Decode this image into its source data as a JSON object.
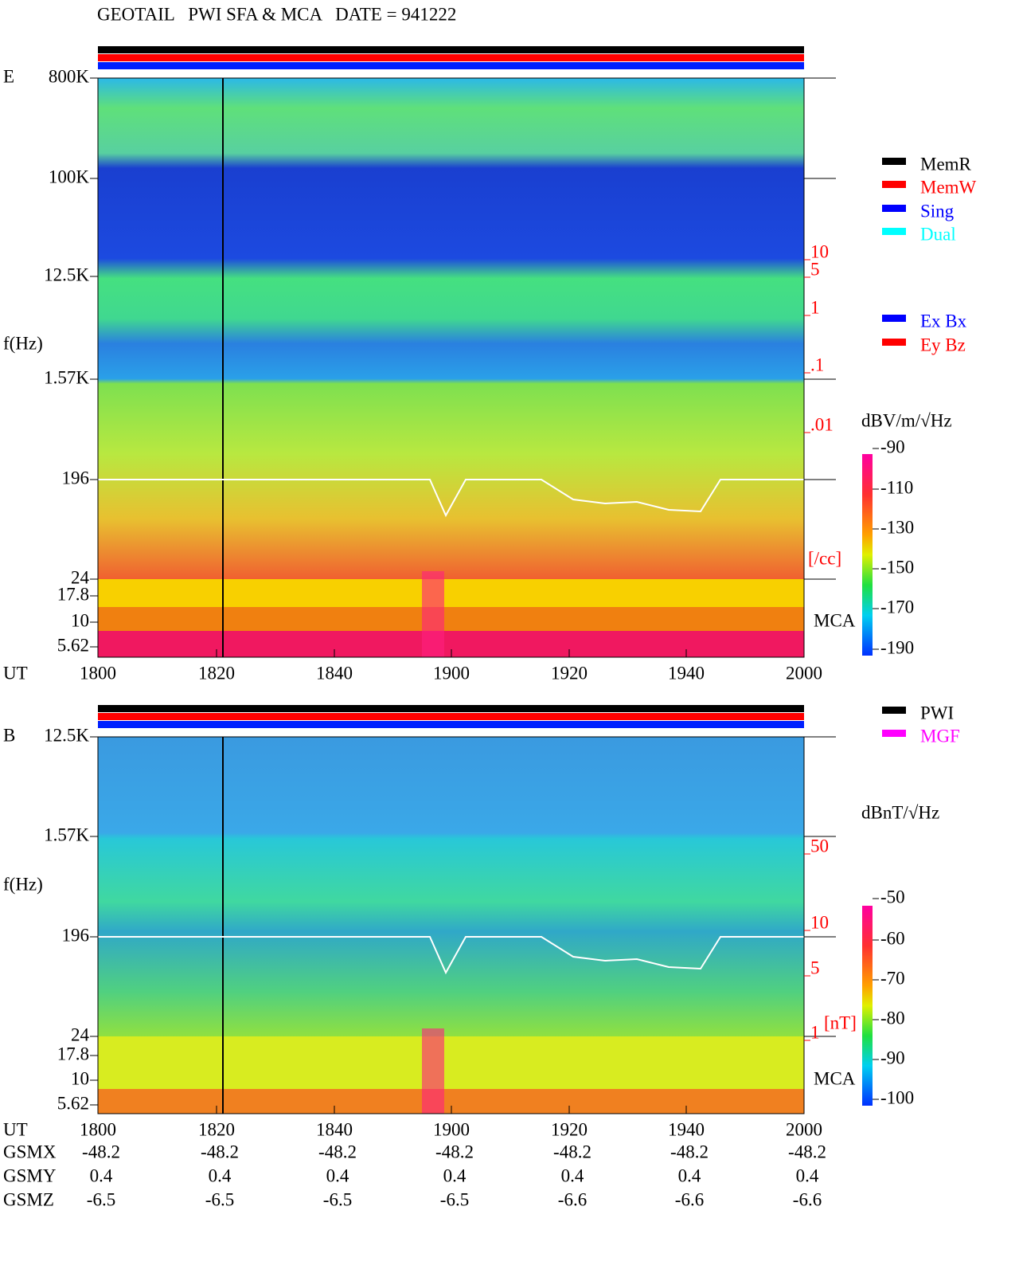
{
  "title": "GEOTAIL   PWI SFA & MCA   DATE = 941222",
  "panels": [
    {
      "label": "E",
      "freq_axis_label": "f(Hz)",
      "freq_ticks": [
        "800K",
        "100K",
        "12.5K",
        "1.57K",
        "196",
        "24",
        "17.8",
        "10",
        "5.62"
      ],
      "time_label": "UT",
      "time_ticks": [
        "1800",
        "1820",
        "1840",
        "1900",
        "1920",
        "1940",
        "2000"
      ],
      "right_ticks": [
        "10",
        "5",
        "1",
        ".1",
        ".01"
      ],
      "right_unit": "[/cc]",
      "mca_label": "MCA",
      "legend": [
        {
          "label": "MemR",
          "color": "#000000"
        },
        {
          "label": "MemW",
          "color": "#ff0000"
        },
        {
          "label": "Sing",
          "color": "#0000ff"
        },
        {
          "label": "Dual",
          "color": "#00ffff"
        }
      ],
      "legend2": [
        {
          "label": "Ex Bx",
          "color": "#0000ff"
        },
        {
          "label": "Ey Bz",
          "color": "#ff0000"
        }
      ],
      "unit": "dBV/m/√Hz",
      "colorbar_ticks": [
        "-90",
        "-110",
        "-130",
        "-150",
        "-170",
        "-190"
      ]
    },
    {
      "label": "B",
      "freq_axis_label": "f(Hz)",
      "freq_ticks": [
        "12.5K",
        "1.57K",
        "196",
        "24",
        "17.8",
        "10",
        "5.62"
      ],
      "time_label": "UT",
      "time_ticks": [
        "1800",
        "1820",
        "1840",
        "1900",
        "1920",
        "1940",
        "2000"
      ],
      "right_ticks": [
        "50",
        "10",
        "5",
        "1"
      ],
      "right_unit": "[nT]",
      "mca_label": "MCA",
      "legend": [
        {
          "label": "PWI",
          "color": "#000000"
        },
        {
          "label": "MGF",
          "color": "#ff00ff"
        }
      ],
      "legend2": [],
      "unit": "dBnT/√Hz",
      "colorbar_ticks": [
        "-50",
        "-60",
        "-70",
        "-80",
        "-90",
        "-100"
      ]
    }
  ],
  "orbit": [
    {
      "label": "GSMX",
      "values": [
        "-48.2",
        "-48.2",
        "-48.2",
        "-48.2",
        "-48.2",
        "-48.2",
        "-48.2"
      ]
    },
    {
      "label": "GSMY",
      "values": [
        "0.4",
        "0.4",
        "0.4",
        "0.4",
        "0.4",
        "0.4",
        "0.4"
      ]
    },
    {
      "label": "GSMZ",
      "values": [
        "-6.5",
        "-6.5",
        "-6.5",
        "-6.5",
        "-6.6",
        "-6.6",
        "-6.6"
      ]
    }
  ]
}
